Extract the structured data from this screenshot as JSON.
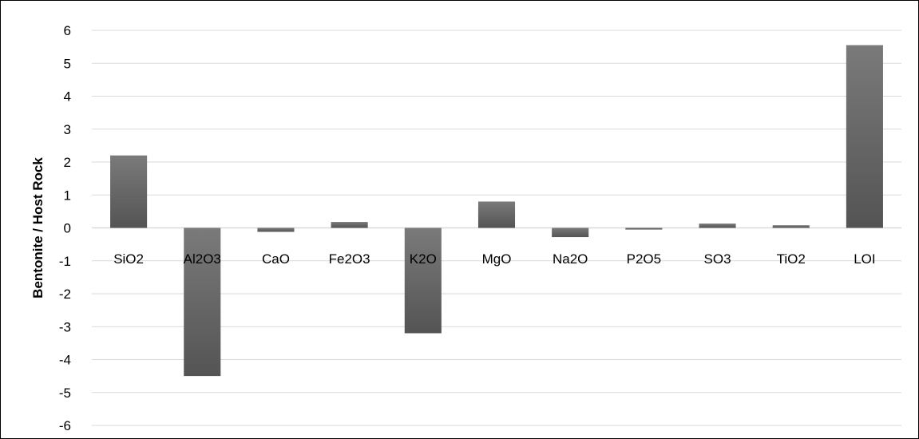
{
  "chart_data": {
    "type": "bar",
    "title": "",
    "xlabel": "",
    "ylabel": "Bentonite / Host Rock",
    "categories": [
      "SiO2",
      "Al2O3",
      "CaO",
      "Fe2O3",
      "K2O",
      "MgO",
      "Na2O",
      "P2O5",
      "SO3",
      "TiO2",
      "LOI"
    ],
    "values": [
      2.2,
      -4.5,
      -0.12,
      0.18,
      -3.2,
      0.8,
      -0.28,
      -0.05,
      0.13,
      0.08,
      5.55
    ],
    "ylim": [
      -6,
      6
    ],
    "yticks": [
      6,
      5,
      4,
      3,
      2,
      1,
      0,
      -1,
      -2,
      -3,
      -4,
      -5,
      -6
    ],
    "grid": true,
    "legend": "none",
    "colors": {
      "bar": "#5a5a5a",
      "bar_top": "#7a7a7a",
      "grid": "#d9d9d9",
      "zero_line": "#d9d9d9"
    }
  }
}
